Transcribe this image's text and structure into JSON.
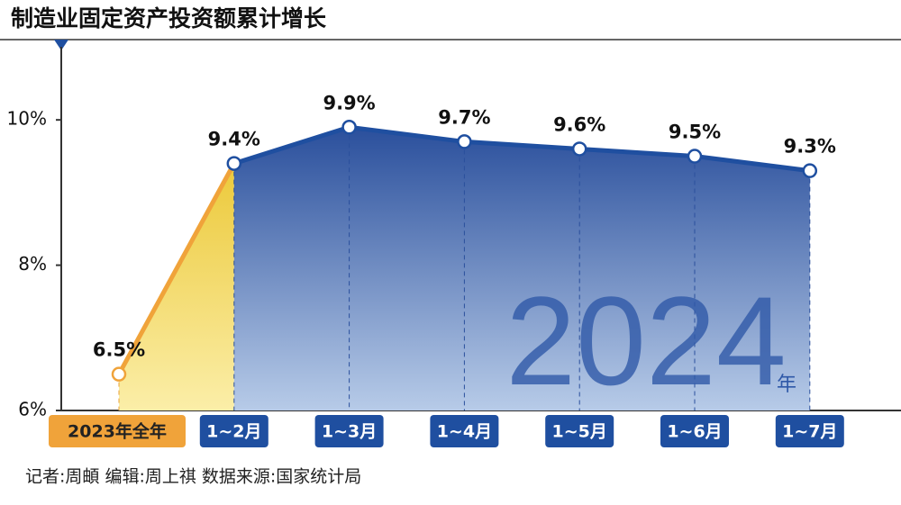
{
  "chart_data": {
    "type": "line",
    "title": "制造业固定资产投资额累计增长",
    "categories": [
      "2023年全年",
      "1~2月",
      "1~3月",
      "1~4月",
      "1~5月",
      "1~6月",
      "1~7月"
    ],
    "values": [
      6.5,
      9.4,
      9.9,
      9.7,
      9.6,
      9.5,
      9.3
    ],
    "value_labels": [
      "6.5%",
      "9.4%",
      "9.9%",
      "9.7%",
      "9.6%",
      "9.5%",
      "9.3%"
    ],
    "color": "#1f4fa0",
    "highlight_color": "#f0a33a",
    "ylim": [
      6,
      10.9
    ],
    "yticks": [
      {
        "value": 6,
        "label": "6%"
      },
      {
        "value": 8,
        "label": "8%"
      },
      {
        "value": 10,
        "label": "10%"
      }
    ],
    "watermark": "2024",
    "watermark_unit": "年",
    "source": "记者:周頔   编辑:周上祺   数据来源:国家统计局"
  }
}
